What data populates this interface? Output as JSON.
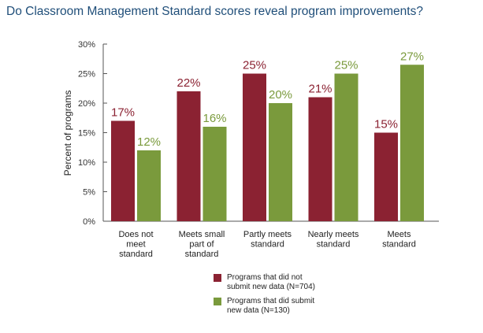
{
  "chart_data": {
    "type": "bar",
    "title": "Do Classroom Management Standard scores reveal program improvements?",
    "ylabel": "Percent of programs",
    "xlabel": "",
    "ylim": [
      0,
      30
    ],
    "yticks": [
      "0%",
      "5%",
      "10%",
      "15%",
      "20%",
      "25%",
      "30%"
    ],
    "ytick_values": [
      0,
      5,
      10,
      15,
      20,
      25,
      30
    ],
    "categories": [
      [
        "Does not",
        "meet",
        "standard"
      ],
      [
        "Meets small",
        "part of",
        "standard"
      ],
      [
        "Partly meets",
        "standard"
      ],
      [
        "Nearly meets",
        "standard"
      ],
      [
        "Meets",
        "standard"
      ]
    ],
    "category_ids": [
      "does-not-meet",
      "meets-small-part",
      "partly-meets",
      "nearly-meets",
      "meets"
    ],
    "series": [
      {
        "name": "Programs that did not submit new data (N=704)",
        "legend_lines": [
          "Programs that did not",
          "submit new data (N=704)"
        ],
        "values": [
          17,
          22,
          25,
          21,
          15
        ],
        "labels": [
          "17%",
          "22%",
          "25%",
          "21%",
          "15%"
        ],
        "color": "#8b2232"
      },
      {
        "name": "Programs that did submit new data (N=130)",
        "legend_lines": [
          "Programs that did submit",
          "new data (N=130)"
        ],
        "values": [
          12,
          16,
          20,
          25,
          26.5
        ],
        "labels": [
          "12%",
          "16%",
          "20%",
          "25%",
          "27%"
        ],
        "color": "#7a9a3c"
      }
    ],
    "grid": false,
    "legend_position": "bottom-center"
  }
}
